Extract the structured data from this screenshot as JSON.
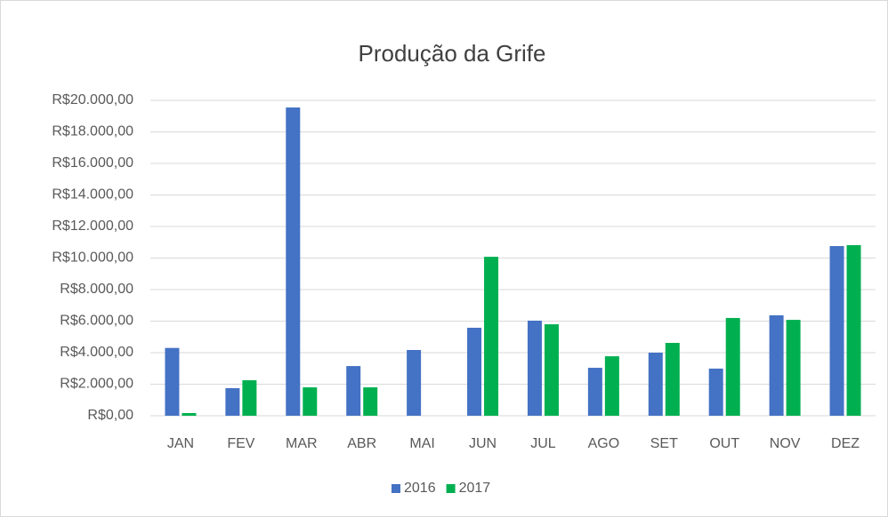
{
  "chart_data": {
    "type": "bar",
    "title": "Produção da Grife",
    "categories": [
      "JAN",
      "FEV",
      "MAR",
      "ABR",
      "MAI",
      "JUN",
      "JUL",
      "AGO",
      "SET",
      "OUT",
      "NOV",
      "DEZ"
    ],
    "series": [
      {
        "name": "2016",
        "color": "#4472c4",
        "values": [
          4300,
          1750,
          19550,
          3150,
          4170,
          5580,
          6030,
          3040,
          4000,
          2990,
          6370,
          10760
        ]
      },
      {
        "name": "2017",
        "color": "#00b050",
        "values": [
          170,
          2250,
          1800,
          1800,
          0,
          10080,
          5800,
          3770,
          4620,
          6200,
          6080,
          10820
        ]
      }
    ],
    "ylim": [
      0,
      20000
    ],
    "yticks": [
      {
        "value": 0,
        "label": "R$0,00"
      },
      {
        "value": 2000,
        "label": "R$2.000,00"
      },
      {
        "value": 4000,
        "label": "R$4.000,00"
      },
      {
        "value": 6000,
        "label": "R$6.000,00"
      },
      {
        "value": 8000,
        "label": "R$8.000,00"
      },
      {
        "value": 10000,
        "label": "R$10.000,00"
      },
      {
        "value": 12000,
        "label": "R$12.000,00"
      },
      {
        "value": 14000,
        "label": "R$14.000,00"
      },
      {
        "value": 16000,
        "label": "R$16.000,00"
      },
      {
        "value": 18000,
        "label": "R$18.000,00"
      },
      {
        "value": 20000,
        "label": "R$20.000,00"
      }
    ],
    "grid": true,
    "legend": "bottom"
  }
}
